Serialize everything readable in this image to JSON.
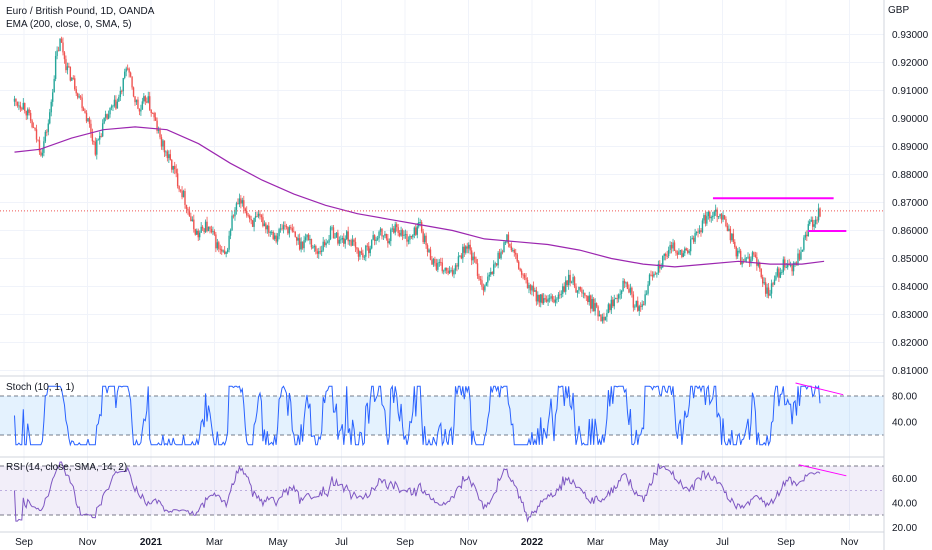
{
  "header": {
    "symbol_title": "Euro / British Pound, 1D, OANDA",
    "ema_legend": "EMA (200, close, 0, SMA, 5)",
    "currency": "GBP"
  },
  "chart_data": [
    {
      "type": "candlestick",
      "title": "Euro / British Pound, 1D, OANDA",
      "currency": "GBP",
      "ylim": [
        0.81,
        0.935
      ],
      "yticks": [
        "0.93000",
        "0.92000",
        "0.91000",
        "0.90000",
        "0.89000",
        "0.88000",
        "0.87000",
        "0.86000",
        "0.85000",
        "0.84000",
        "0.83000",
        "0.82000",
        "0.81000"
      ],
      "xticks": [
        {
          "label": "Sep",
          "month_index": 0
        },
        {
          "label": "Nov",
          "month_index": 2
        },
        {
          "label": "2021",
          "month_index": 4
        },
        {
          "label": "Mar",
          "month_index": 6
        },
        {
          "label": "May",
          "month_index": 8
        },
        {
          "label": "Jul",
          "month_index": 10
        },
        {
          "label": "Sep",
          "month_index": 12
        },
        {
          "label": "Nov",
          "month_index": 14
        },
        {
          "label": "2022",
          "month_index": 16
        },
        {
          "label": "Mar",
          "month_index": 18
        },
        {
          "label": "May",
          "month_index": 20
        },
        {
          "label": "Jul",
          "month_index": 22
        },
        {
          "label": "Sep",
          "month_index": 24
        },
        {
          "label": "Nov",
          "month_index": 26
        }
      ],
      "last_close": 0.867,
      "up_color": "#26a69a",
      "down_color": "#ef5350",
      "close_path": [
        [
          -0.3,
          0.906
        ],
        [
          0.0,
          0.905
        ],
        [
          0.3,
          0.896
        ],
        [
          0.55,
          0.888
        ],
        [
          0.8,
          0.9
        ],
        [
          1.0,
          0.921
        ],
        [
          1.15,
          0.928
        ],
        [
          1.35,
          0.918
        ],
        [
          1.6,
          0.912
        ],
        [
          1.85,
          0.905
        ],
        [
          2.05,
          0.898
        ],
        [
          2.25,
          0.889
        ],
        [
          2.5,
          0.898
        ],
        [
          2.75,
          0.903
        ],
        [
          2.95,
          0.906
        ],
        [
          3.1,
          0.911
        ],
        [
          3.25,
          0.92
        ],
        [
          3.4,
          0.91
        ],
        [
          3.65,
          0.902
        ],
        [
          3.85,
          0.908
        ],
        [
          4.0,
          0.903
        ],
        [
          4.15,
          0.898
        ],
        [
          4.3,
          0.892
        ],
        [
          4.5,
          0.887
        ],
        [
          4.7,
          0.882
        ],
        [
          4.9,
          0.876
        ],
        [
          5.1,
          0.87
        ],
        [
          5.3,
          0.862
        ],
        [
          5.5,
          0.858
        ],
        [
          5.7,
          0.862
        ],
        [
          5.95,
          0.858
        ],
        [
          6.15,
          0.853
        ],
        [
          6.35,
          0.85
        ],
        [
          6.55,
          0.864
        ],
        [
          6.75,
          0.87
        ],
        [
          6.95,
          0.868
        ],
        [
          7.2,
          0.863
        ],
        [
          7.45,
          0.864
        ],
        [
          7.7,
          0.861
        ],
        [
          7.95,
          0.858
        ],
        [
          8.2,
          0.862
        ],
        [
          8.45,
          0.859
        ],
        [
          8.7,
          0.855
        ],
        [
          8.95,
          0.858
        ],
        [
          9.2,
          0.852
        ],
        [
          9.45,
          0.855
        ],
        [
          9.7,
          0.86
        ],
        [
          9.95,
          0.856
        ],
        [
          10.2,
          0.858
        ],
        [
          10.45,
          0.853
        ],
        [
          10.7,
          0.851
        ],
        [
          10.95,
          0.856
        ],
        [
          11.2,
          0.859
        ],
        [
          11.45,
          0.857
        ],
        [
          11.7,
          0.862
        ],
        [
          11.95,
          0.858
        ],
        [
          12.2,
          0.857
        ],
        [
          12.45,
          0.863
        ],
        [
          12.7,
          0.853
        ],
        [
          12.95,
          0.848
        ],
        [
          13.2,
          0.846
        ],
        [
          13.45,
          0.844
        ],
        [
          13.7,
          0.851
        ],
        [
          13.95,
          0.855
        ],
        [
          14.2,
          0.848
        ],
        [
          14.45,
          0.84
        ],
        [
          14.7,
          0.844
        ],
        [
          14.95,
          0.851
        ],
        [
          15.2,
          0.857
        ],
        [
          15.45,
          0.851
        ],
        [
          15.7,
          0.843
        ],
        [
          15.95,
          0.839
        ],
        [
          16.2,
          0.836
        ],
        [
          16.45,
          0.834
        ],
        [
          16.7,
          0.835
        ],
        [
          16.95,
          0.838
        ],
        [
          17.2,
          0.843
        ],
        [
          17.45,
          0.839
        ],
        [
          17.7,
          0.836
        ],
        [
          17.95,
          0.833
        ],
        [
          18.2,
          0.829
        ],
        [
          18.45,
          0.833
        ],
        [
          18.7,
          0.838
        ],
        [
          18.95,
          0.843
        ],
        [
          19.2,
          0.834
        ],
        [
          19.45,
          0.831
        ],
        [
          19.7,
          0.843
        ],
        [
          19.95,
          0.847
        ],
        [
          20.2,
          0.85
        ],
        [
          20.45,
          0.855
        ],
        [
          20.7,
          0.851
        ],
        [
          20.95,
          0.854
        ],
        [
          21.2,
          0.859
        ],
        [
          21.45,
          0.864
        ],
        [
          21.7,
          0.867
        ],
        [
          21.95,
          0.866
        ],
        [
          22.2,
          0.86
        ],
        [
          22.45,
          0.852
        ],
        [
          22.7,
          0.848
        ],
        [
          22.95,
          0.852
        ],
        [
          23.2,
          0.844
        ],
        [
          23.45,
          0.837
        ],
        [
          23.7,
          0.844
        ],
        [
          23.95,
          0.848
        ],
        [
          24.2,
          0.846
        ],
        [
          24.45,
          0.851
        ],
        [
          24.7,
          0.861
        ],
        [
          24.9,
          0.864
        ],
        [
          25.1,
          0.867
        ]
      ],
      "ema_path": [
        [
          -0.3,
          0.888
        ],
        [
          0.5,
          0.889
        ],
        [
          1.5,
          0.893
        ],
        [
          2.5,
          0.896
        ],
        [
          3.5,
          0.897
        ],
        [
          4.5,
          0.896
        ],
        [
          5.5,
          0.891
        ],
        [
          6.5,
          0.884
        ],
        [
          7.5,
          0.878
        ],
        [
          8.5,
          0.873
        ],
        [
          9.5,
          0.869
        ],
        [
          10.5,
          0.866
        ],
        [
          11.5,
          0.864
        ],
        [
          12.5,
          0.862
        ],
        [
          13.5,
          0.86
        ],
        [
          14.5,
          0.857
        ],
        [
          15.5,
          0.856
        ],
        [
          16.5,
          0.855
        ],
        [
          17.5,
          0.853
        ],
        [
          18.5,
          0.85
        ],
        [
          19.5,
          0.848
        ],
        [
          20.5,
          0.847
        ],
        [
          21.5,
          0.848
        ],
        [
          22.5,
          0.849
        ],
        [
          23.5,
          0.848
        ],
        [
          24.5,
          0.848
        ],
        [
          25.2,
          0.849
        ]
      ],
      "annotations": [
        {
          "name": "resistance-upper",
          "type": "horizontal",
          "x_start": 21.7,
          "x_end": 25.5,
          "y": 0.8715,
          "color": "#ff00ff"
        },
        {
          "name": "resistance-lower",
          "type": "horizontal",
          "x_start": 24.7,
          "x_end": 25.9,
          "y": 0.8598,
          "color": "#ff00ff"
        }
      ],
      "ema_color": "#9c27b0"
    },
    {
      "type": "line",
      "name": "Stochastic",
      "legend": "Stoch (10, 1, 1)",
      "ylim": [
        0,
        100
      ],
      "band": [
        20,
        80
      ],
      "yticks": [
        "80.00",
        "40.00"
      ],
      "line_color": "#2962ff",
      "band_color": "#2196f3",
      "divergence_line": {
        "x_start": 24.3,
        "y_start": 100,
        "x_end": 25.8,
        "y_end": 82,
        "color": "#ff00ff"
      }
    },
    {
      "type": "line",
      "name": "RSI",
      "legend": "RSI (14, close, SMA, 14, 2)",
      "ylim": [
        20,
        80
      ],
      "band": [
        30,
        70
      ],
      "yticks": [
        "60.00",
        "40.00",
        "20.00"
      ],
      "line_color": "#7e57c2",
      "band_color": "#7e57c2",
      "divergence_line": {
        "x_start": 24.4,
        "y_start": 71,
        "x_end": 25.9,
        "y_end": 62,
        "color": "#ff00ff"
      }
    }
  ]
}
